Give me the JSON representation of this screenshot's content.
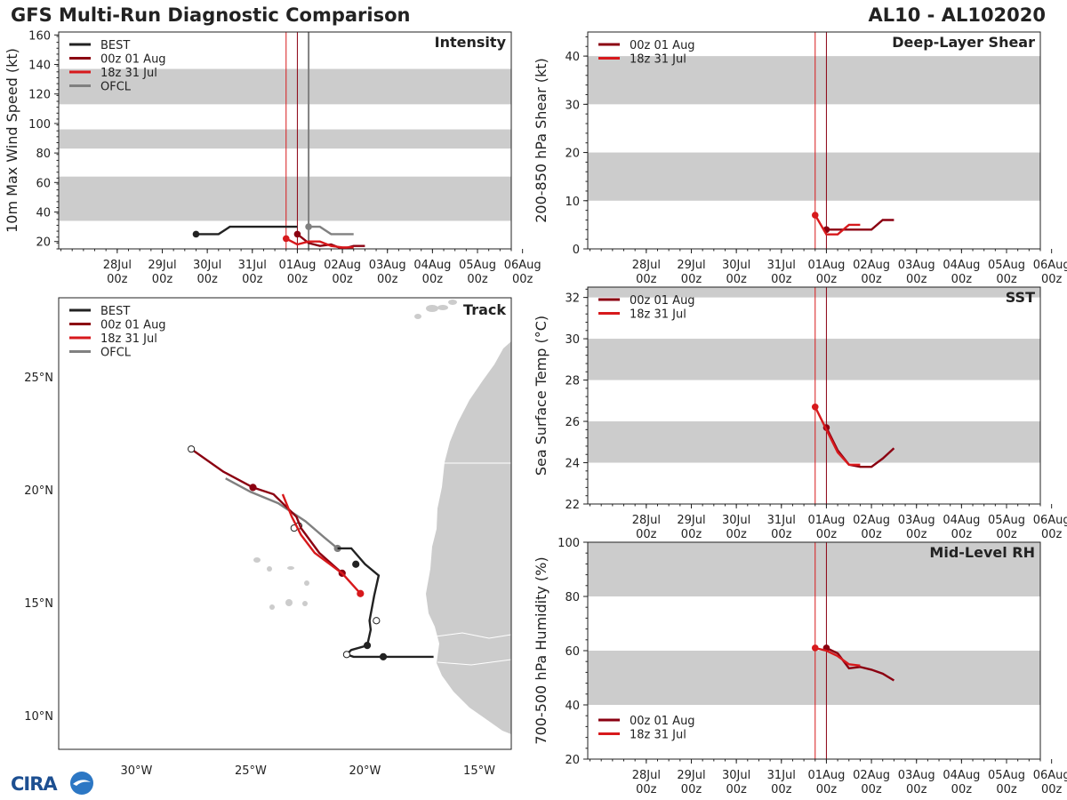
{
  "header": {
    "title": "GFS Multi-Run Diagnostic Comparison",
    "storm_id": "AL10 - AL102020"
  },
  "logo": {
    "text": "CIRA"
  },
  "colors": {
    "best": "#222222",
    "run1": "#8b0011",
    "run2": "#d7191c",
    "ofcl": "#808080",
    "band": "#cccccc",
    "land": "#cccccc"
  },
  "time_axis": {
    "ticks": [
      "28Jul\n00z",
      "29Jul\n00z",
      "30Jul\n00z",
      "31Jul\n00z",
      "01Aug\n00z",
      "02Aug\n00z",
      "03Aug\n00z",
      "04Aug\n00z",
      "05Aug\n00z",
      "06Aug\n00z"
    ],
    "range_days": [
      -1.3,
      8.75
    ],
    "run_lines_days": [
      3.75,
      4.0
    ],
    "ofcl_line_days": 4.25
  },
  "chart_data": [
    {
      "id": "intensity",
      "type": "line",
      "title": "Intensity",
      "ylabel": "10m Max Wind Speed (kt)",
      "ylim": [
        15,
        162
      ],
      "yticks": [
        20,
        40,
        60,
        80,
        100,
        120,
        140,
        160
      ],
      "bands": [
        [
          34,
          64
        ],
        [
          83,
          96
        ],
        [
          113,
          137
        ]
      ],
      "legend": [
        "BEST",
        "00z 01 Aug",
        "18z 31 Jul",
        "OFCL"
      ],
      "series": [
        {
          "name": "BEST",
          "role": "best",
          "x": [
            1.75,
            2.25,
            2.5,
            3.0,
            3.5,
            4.0
          ],
          "y": [
            25,
            25,
            30,
            30,
            30,
            30
          ]
        },
        {
          "name": "00z 01 Aug",
          "role": "run1",
          "x": [
            4.0,
            4.25,
            4.5,
            4.75,
            5.0,
            5.25,
            5.5
          ],
          "y": [
            25,
            19,
            17,
            18,
            15,
            17,
            17
          ]
        },
        {
          "name": "18z 31 Jul",
          "role": "run2",
          "x": [
            3.75,
            4.0,
            4.25,
            4.5,
            4.75,
            5.0,
            5.25
          ],
          "y": [
            22,
            18,
            20,
            20,
            17,
            16,
            16
          ]
        },
        {
          "name": "OFCL",
          "role": "ofcl",
          "x": [
            4.25,
            4.5,
            4.75,
            5.0,
            5.25
          ],
          "y": [
            30,
            30,
            25,
            25,
            25
          ]
        }
      ]
    },
    {
      "id": "shear",
      "type": "line",
      "title": "Deep-Layer Shear",
      "ylabel": "200-850 hPa Shear (kt)",
      "ylim": [
        0,
        45
      ],
      "yticks": [
        0,
        10,
        20,
        30,
        40
      ],
      "bands": [
        [
          10,
          20
        ],
        [
          30,
          40
        ]
      ],
      "legend": [
        "00z 01 Aug",
        "18z 31 Jul"
      ],
      "series": [
        {
          "name": "00z 01 Aug",
          "role": "run1",
          "x": [
            4.0,
            4.25,
            4.5,
            5.0,
            5.25,
            5.5
          ],
          "y": [
            4,
            4,
            4,
            4,
            6,
            6
          ]
        },
        {
          "name": "18z 31 Jul",
          "role": "run2",
          "x": [
            3.75,
            4.0,
            4.25,
            4.5,
            4.75
          ],
          "y": [
            7,
            3,
            3,
            5,
            5
          ]
        }
      ]
    },
    {
      "id": "sst",
      "type": "line",
      "title": "SST",
      "ylabel": "Sea Surface Temp (°C)",
      "ylim": [
        22,
        32.5
      ],
      "yticks": [
        22,
        24,
        26,
        28,
        30,
        32
      ],
      "bands": [
        [
          24,
          26
        ],
        [
          28,
          30
        ],
        [
          32,
          33
        ]
      ],
      "legend": [
        "00z 01 Aug",
        "18z 31 Jul"
      ],
      "series": [
        {
          "name": "00z 01 Aug",
          "role": "run1",
          "x": [
            4.0,
            4.25,
            4.5,
            4.75,
            5.0,
            5.25,
            5.5
          ],
          "y": [
            25.7,
            24.6,
            23.9,
            23.8,
            23.8,
            24.2,
            24.7
          ]
        },
        {
          "name": "18z 31 Jul",
          "role": "run2",
          "x": [
            3.75,
            4.0,
            4.25,
            4.5,
            4.75
          ],
          "y": [
            26.7,
            25.6,
            24.5,
            23.9,
            23.9
          ]
        }
      ]
    },
    {
      "id": "rh",
      "type": "line",
      "title": "Mid-Level RH",
      "ylabel": "700-500 hPa Humidity (%)",
      "ylim": [
        20,
        100
      ],
      "yticks": [
        20,
        40,
        60,
        80,
        100
      ],
      "bands": [
        [
          40,
          60
        ],
        [
          80,
          100
        ]
      ],
      "legend": [
        "00z 01 Aug",
        "18z 31 Jul"
      ],
      "series": [
        {
          "name": "00z 01 Aug",
          "role": "run1",
          "x": [
            4.0,
            4.25,
            4.5,
            4.75,
            5.0,
            5.25,
            5.5
          ],
          "y": [
            61,
            59,
            53.5,
            54,
            53,
            51.5,
            49
          ]
        },
        {
          "name": "18z 31 Jul",
          "role": "run2",
          "x": [
            3.75,
            4.0,
            4.25,
            4.5,
            4.75
          ],
          "y": [
            61,
            60,
            58,
            55,
            54.5
          ]
        }
      ]
    },
    {
      "id": "track",
      "type": "line",
      "title": "Track",
      "xlim": [
        -33.4,
        -13.6
      ],
      "ylim": [
        8.5,
        28.5
      ],
      "xticks": [
        -30,
        -25,
        -20,
        -15
      ],
      "xtick_labels": [
        "30°W",
        "25°W",
        "20°W",
        "15°W"
      ],
      "yticks": [
        10,
        15,
        20,
        25
      ],
      "ytick_labels": [
        "10°N",
        "15°N",
        "20°N",
        "25°N"
      ],
      "legend": [
        "BEST",
        "00z 01 Aug",
        "18z 31 Jul",
        "OFCL"
      ],
      "series": [
        {
          "name": "BEST",
          "role": "best",
          "lon": [
            -17.0,
            -19.2,
            -20.5,
            -20.8,
            -20.6,
            -19.9,
            -19.75,
            -19.8,
            -19.6,
            -19.4,
            -20.0,
            -20.6,
            -21.2
          ],
          "lat": [
            12.6,
            12.6,
            12.6,
            12.7,
            12.9,
            13.1,
            13.8,
            14.2,
            15.3,
            16.2,
            16.7,
            17.4,
            17.4
          ],
          "markers": [
            {
              "lon": -19.2,
              "lat": 12.6,
              "open": false
            },
            {
              "lon": -19.9,
              "lat": 13.1,
              "open": false
            },
            {
              "lon": -20.8,
              "lat": 12.7,
              "open": true
            },
            {
              "lon": -19.5,
              "lat": 14.2,
              "open": true
            },
            {
              "lon": -20.4,
              "lat": 16.7,
              "open": false
            }
          ]
        },
        {
          "name": "00z 01 Aug",
          "role": "run1",
          "lon": [
            -21.0,
            -22.0,
            -22.8,
            -23.0,
            -23.5,
            -24.0,
            -24.9,
            -26.2,
            -27.6
          ],
          "lat": [
            16.3,
            17.2,
            18.3,
            18.8,
            19.3,
            19.8,
            20.1,
            20.8,
            21.8
          ],
          "markers": [
            {
              "lon": -21.0,
              "lat": 16.3,
              "open": false
            },
            {
              "lon": -24.9,
              "lat": 20.1,
              "open": false
            },
            {
              "lon": -27.6,
              "lat": 21.8,
              "open": true
            }
          ]
        },
        {
          "name": "18z 31 Jul",
          "role": "run2",
          "lon": [
            -20.2,
            -21.0,
            -22.2,
            -22.8,
            -23.2,
            -23.6
          ],
          "lat": [
            15.4,
            16.3,
            17.2,
            18.0,
            18.8,
            19.8
          ],
          "markers": [
            {
              "lon": -20.2,
              "lat": 15.4,
              "open": false
            }
          ]
        },
        {
          "name": "OFCL",
          "role": "ofcl",
          "lon": [
            -21.2,
            -21.8,
            -22.6,
            -23.8,
            -25.0,
            -26.1
          ],
          "lat": [
            17.4,
            17.9,
            18.6,
            19.4,
            19.9,
            20.5
          ],
          "markers": [
            {
              "lon": -21.2,
              "lat": 17.4,
              "open": false
            },
            {
              "lon": -22.9,
              "lat": 18.4,
              "open": true
            },
            {
              "lon": -23.1,
              "lat": 18.3,
              "open": true
            }
          ]
        }
      ]
    }
  ]
}
